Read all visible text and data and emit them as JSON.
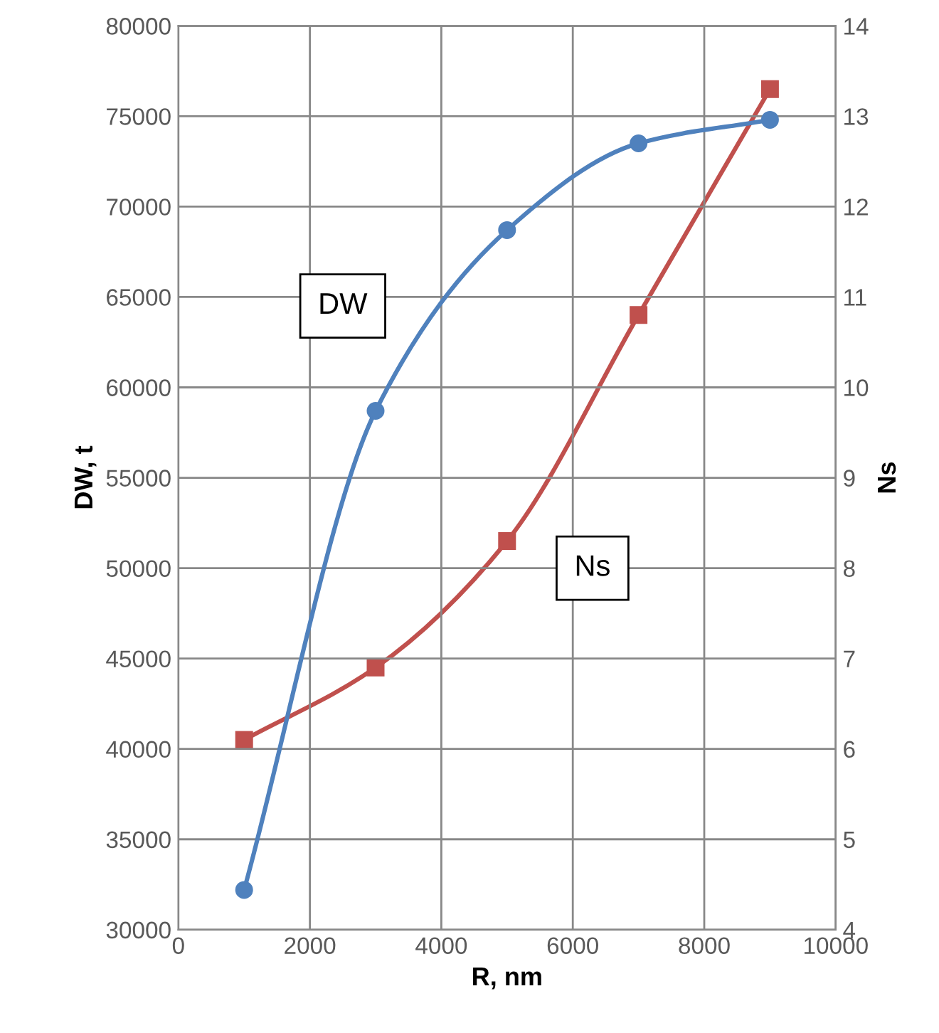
{
  "chart_data": {
    "type": "line",
    "xlabel": "R, nm",
    "ylabel": "DW, t",
    "y2label": "Ns",
    "x": [
      1000,
      3000,
      5000,
      7000,
      9000
    ],
    "series": [
      {
        "name": "DW",
        "color": "#4f81bd",
        "values": [
          32200,
          58700,
          68700,
          73500,
          74800
        ],
        "marker": "circle"
      },
      {
        "name": "Ns",
        "color": "#c0504d",
        "values": [
          6.1,
          6.9,
          8.3,
          10.8,
          13.3
        ],
        "marker": "square",
        "axis": "y2"
      }
    ],
    "xlim": [
      0,
      10000
    ],
    "xticks": [
      0,
      2000,
      4000,
      6000,
      8000,
      10000
    ],
    "ylim": [
      30000,
      80000
    ],
    "yticks": [
      30000,
      35000,
      40000,
      45000,
      50000,
      55000,
      60000,
      65000,
      70000,
      75000,
      80000
    ],
    "y2lim": [
      4,
      14
    ],
    "y2ticks": [
      4,
      5,
      6,
      7,
      8,
      9,
      10,
      11,
      12,
      13,
      14
    ],
    "grid": true,
    "line_style": "solid"
  }
}
